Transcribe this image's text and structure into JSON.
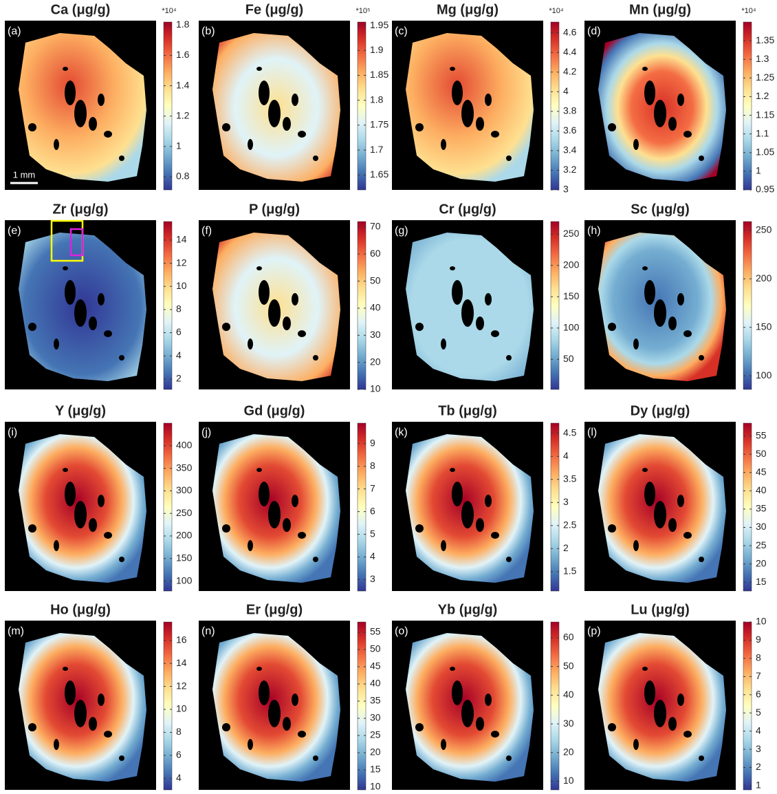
{
  "chart_data": [
    {
      "type": "heatmap",
      "title": "Ca (μg/g)",
      "panel_label": "(a)",
      "multiplier": "*10⁴",
      "scale_bar": "1 mm",
      "ylim": [
        0.714,
        1.82
      ],
      "yticks": [
        0.8,
        1,
        1.2,
        1.4,
        1.6,
        1.8
      ]
    },
    {
      "type": "heatmap",
      "title": "Fe (μg/g)",
      "panel_label": "(b)",
      "multiplier": "*10⁵",
      "ylim": [
        1.62,
        1.957
      ],
      "yticks": [
        1.65,
        1.7,
        1.75,
        1.8,
        1.85,
        1.9,
        1.95
      ]
    },
    {
      "type": "heatmap",
      "title": "Mg (μg/g)",
      "panel_label": "(c)",
      "multiplier": "*10⁴",
      "ylim": [
        3,
        4.71
      ],
      "yticks": [
        3,
        3.2,
        3.4,
        3.6,
        3.8,
        4,
        4.2,
        4.4,
        4.6
      ]
    },
    {
      "type": "heatmap",
      "title": "Mn (μg/g)",
      "panel_label": "(d)",
      "multiplier": "*10⁴",
      "ylim": [
        0.95,
        1.4
      ],
      "yticks": [
        0.95,
        1,
        1.05,
        1.1,
        1.15,
        1.2,
        1.25,
        1.3,
        1.35
      ]
    },
    {
      "type": "heatmap",
      "title": "Zr (μg/g)",
      "panel_label": "(e)",
      "ylim": [
        1.1,
        15.6
      ],
      "yticks": [
        2,
        4,
        6,
        8,
        10,
        12,
        14
      ]
    },
    {
      "type": "heatmap",
      "title": "P (μg/g)",
      "panel_label": "(f)",
      "ylim": [
        10,
        72
      ],
      "yticks": [
        10,
        20,
        30,
        40,
        50,
        60,
        70
      ]
    },
    {
      "type": "heatmap",
      "title": "Cr (μg/g)",
      "panel_label": "(g)",
      "ylim": [
        2,
        270
      ],
      "yticks": [
        50,
        100,
        150,
        200,
        250
      ]
    },
    {
      "type": "heatmap",
      "title": "Sc (μg/g)",
      "panel_label": "(h)",
      "ylim": [
        86,
        259
      ],
      "yticks": [
        100,
        150,
        200,
        250
      ]
    },
    {
      "type": "heatmap",
      "title": "Y (μg/g)",
      "panel_label": "(i)",
      "ylim": [
        78,
        450
      ],
      "yticks": [
        100,
        150,
        200,
        250,
        300,
        350,
        400
      ]
    },
    {
      "type": "heatmap",
      "title": "Gd (μg/g)",
      "panel_label": "(j)",
      "ylim": [
        2.5,
        9.9
      ],
      "yticks": [
        3,
        4,
        5,
        6,
        7,
        8,
        9
      ]
    },
    {
      "type": "heatmap",
      "title": "Tb (μg/g)",
      "panel_label": "(k)",
      "ylim": [
        1.08,
        4.72
      ],
      "yticks": [
        1.5,
        2,
        2.5,
        3,
        3.5,
        4,
        4.5
      ]
    },
    {
      "type": "heatmap",
      "title": "Dy (μg/g)",
      "panel_label": "(l)",
      "ylim": [
        12.6,
        58.5
      ],
      "yticks": [
        15,
        20,
        25,
        30,
        35,
        40,
        45,
        50,
        55
      ]
    },
    {
      "type": "heatmap",
      "title": "Ho (μg/g)",
      "panel_label": "(m)",
      "ylim": [
        3,
        17.6
      ],
      "yticks": [
        4,
        6,
        8,
        10,
        12,
        14,
        16
      ]
    },
    {
      "type": "heatmap",
      "title": "Er (μg/g)",
      "panel_label": "(n)",
      "ylim": [
        9.2,
        58
      ],
      "yticks": [
        10,
        15,
        20,
        25,
        30,
        35,
        40,
        45,
        50,
        55
      ]
    },
    {
      "type": "heatmap",
      "title": "Yb (μg/g)",
      "panel_label": "(o)",
      "ylim": [
        7,
        65.5
      ],
      "yticks": [
        10,
        20,
        30,
        40,
        50,
        60
      ]
    },
    {
      "type": "heatmap",
      "title": "Lu (μg/g)",
      "panel_label": "(p)",
      "ylim": [
        0.77,
        10
      ],
      "yticks": [
        1,
        2,
        3,
        4,
        5,
        6,
        7,
        8,
        9,
        10
      ]
    }
  ]
}
